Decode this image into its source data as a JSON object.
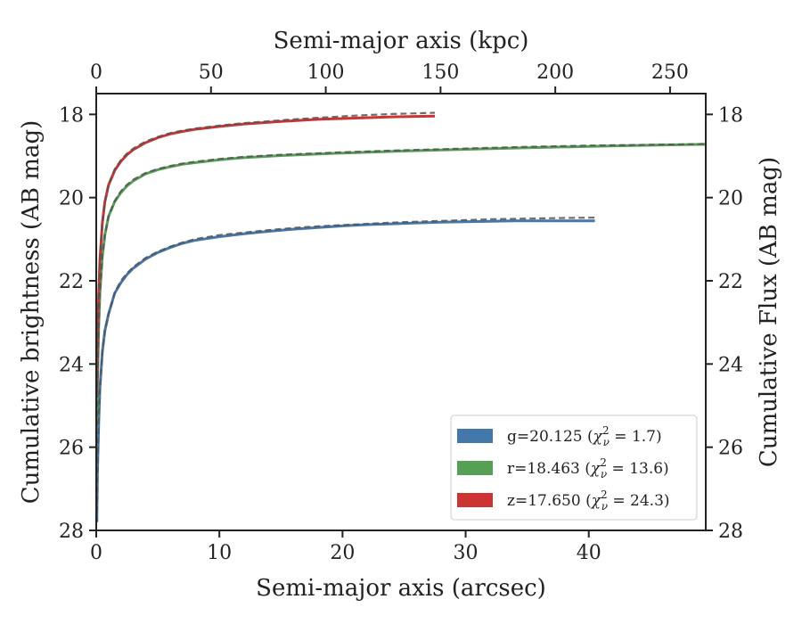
{
  "chart_data": {
    "type": "line",
    "title": "",
    "xlabel": "Semi-major axis (arcsec)",
    "ylabel": "Cumulative brightness (AB mag)",
    "ylabel_right": "Cumulative Flux (AB mag)",
    "xlabel_top": "Semi-major axis (kpc)",
    "xlim": [
      0,
      49.5
    ],
    "ylim": [
      28,
      17.5
    ],
    "y_inverted": true,
    "xticks": [
      "0",
      "10",
      "20",
      "30",
      "40"
    ],
    "yticks": [
      "18",
      "20",
      "22",
      "24",
      "26",
      "28"
    ],
    "xticks_top": [
      "0",
      "50",
      "100",
      "150",
      "200",
      "250"
    ],
    "grid": false,
    "legend_position": "lower-right",
    "series": [
      {
        "name": "g=20.125",
        "chi2": "= 1.7",
        "color": "#4477aa",
        "x": [
          0.05,
          0.1,
          0.2,
          0.3,
          0.5,
          0.7,
          1.0,
          1.5,
          2,
          2.5,
          3,
          4,
          5,
          6,
          7,
          8,
          10,
          12,
          14,
          16,
          18,
          20,
          22,
          24,
          26,
          28,
          30,
          32,
          34,
          36,
          38,
          40.5
        ],
        "y": [
          27.8,
          26.6,
          25.4,
          24.6,
          23.7,
          23.2,
          22.8,
          22.3,
          22.05,
          21.85,
          21.7,
          21.48,
          21.32,
          21.2,
          21.1,
          21.03,
          20.94,
          20.87,
          20.81,
          20.76,
          20.72,
          20.68,
          20.65,
          20.63,
          20.61,
          20.59,
          20.58,
          20.57,
          20.56,
          20.56,
          20.56,
          20.56
        ],
        "fit_y": [
          27.8,
          26.6,
          25.4,
          24.6,
          23.7,
          23.2,
          22.8,
          22.28,
          22.0,
          21.82,
          21.67,
          21.45,
          21.3,
          21.18,
          21.08,
          21.0,
          20.9,
          20.84,
          20.78,
          20.73,
          20.69,
          20.66,
          20.63,
          20.6,
          20.58,
          20.56,
          20.54,
          20.52,
          20.51,
          20.5,
          20.49,
          20.48
        ]
      },
      {
        "name": "r=18.463",
        "chi2": "= 13.6",
        "color": "#55a055",
        "x": [
          0.05,
          0.1,
          0.2,
          0.3,
          0.5,
          0.7,
          1.0,
          1.5,
          2,
          2.5,
          3,
          4,
          5,
          6,
          7,
          8,
          10,
          12,
          15,
          20,
          25,
          30,
          35,
          40,
          45,
          49.5
        ],
        "y": [
          25.5,
          24.4,
          23.1,
          22.3,
          21.4,
          20.9,
          20.45,
          20.1,
          19.88,
          19.72,
          19.6,
          19.43,
          19.33,
          19.26,
          19.2,
          19.16,
          19.09,
          19.04,
          18.99,
          18.93,
          18.88,
          18.84,
          18.8,
          18.77,
          18.74,
          18.72
        ],
        "fit_y": [
          25.5,
          24.4,
          23.1,
          22.3,
          21.4,
          20.9,
          20.45,
          20.08,
          19.85,
          19.69,
          19.57,
          19.41,
          19.31,
          19.24,
          19.18,
          19.14,
          19.07,
          19.02,
          18.97,
          18.91,
          18.86,
          18.82,
          18.78,
          18.75,
          18.73,
          18.71
        ]
      },
      {
        "name": "z=17.650",
        "chi2": "= 24.3",
        "color": "#cc3333",
        "x": [
          0.05,
          0.1,
          0.2,
          0.3,
          0.5,
          0.7,
          1.0,
          1.5,
          2,
          2.5,
          3,
          4,
          5,
          6,
          7,
          8,
          10,
          12,
          15,
          18,
          21,
          24,
          27.5
        ],
        "y": [
          24.8,
          23.6,
          22.3,
          21.5,
          20.6,
          20.1,
          19.7,
          19.35,
          19.13,
          18.97,
          18.85,
          18.68,
          18.56,
          18.47,
          18.41,
          18.36,
          18.29,
          18.23,
          18.17,
          18.12,
          18.09,
          18.06,
          18.04
        ],
        "fit_y": [
          24.8,
          23.6,
          22.3,
          21.5,
          20.6,
          20.1,
          19.68,
          19.32,
          19.1,
          18.94,
          18.82,
          18.65,
          18.54,
          18.45,
          18.39,
          18.34,
          18.27,
          18.21,
          18.14,
          18.08,
          18.03,
          17.99,
          17.96
        ]
      }
    ]
  },
  "colors": {
    "fit_line": "#555555",
    "axis": "#222222"
  },
  "legend": {
    "chi_symbol": "χ",
    "chi_super": "2",
    "chi_sub": "ν"
  }
}
